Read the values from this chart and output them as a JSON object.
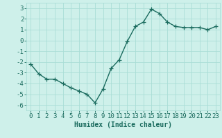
{
  "x": [
    0,
    1,
    2,
    3,
    4,
    5,
    6,
    7,
    8,
    9,
    10,
    11,
    12,
    13,
    14,
    15,
    16,
    17,
    18,
    19,
    20,
    21,
    22,
    23
  ],
  "y": [
    -2.2,
    -3.1,
    -3.6,
    -3.6,
    -4.0,
    -4.4,
    -4.7,
    -5.0,
    -5.8,
    -4.5,
    -2.6,
    -1.8,
    -0.1,
    1.3,
    1.7,
    2.9,
    2.5,
    1.7,
    1.3,
    1.2,
    1.2,
    1.2,
    1.0,
    1.3
  ],
  "line_color": "#1a6b5e",
  "marker": "+",
  "marker_size": 4,
  "linewidth": 1.0,
  "xlabel": "Humidex (Indice chaleur)",
  "xlabel_fontsize": 7,
  "ylabel_ticks": [
    -6,
    -5,
    -4,
    -3,
    -2,
    -1,
    0,
    1,
    2,
    3
  ],
  "xlim": [
    -0.5,
    23.5
  ],
  "ylim": [
    -6.5,
    3.5
  ],
  "background_color": "#cef0ea",
  "grid_color": "#aaddd6",
  "tick_fontsize": 6.5,
  "title": ""
}
